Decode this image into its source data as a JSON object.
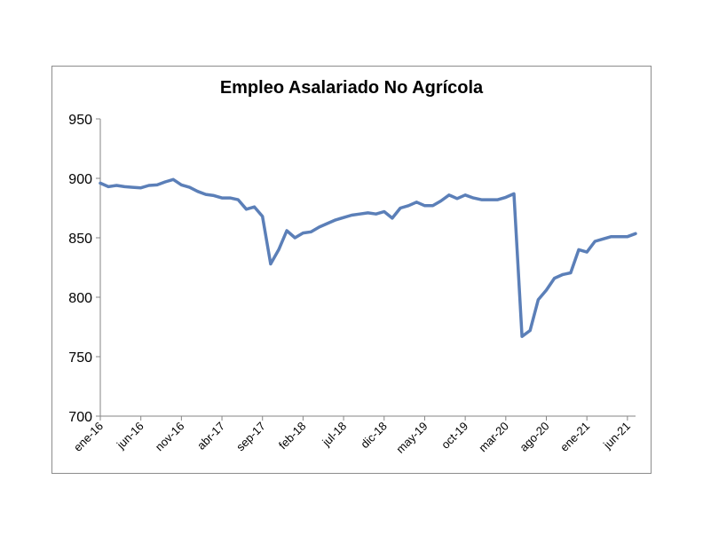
{
  "chart_data": {
    "type": "line",
    "title": "Empleo Asalariado No Agrícola",
    "xlabel": "",
    "ylabel": "",
    "ylim": [
      700,
      950
    ],
    "yticks": [
      700,
      750,
      800,
      850,
      900,
      950
    ],
    "xtick_labels": [
      "ene-16",
      "jun-16",
      "nov-16",
      "abr-17",
      "sep-17",
      "feb-18",
      "jul-18",
      "dic-18",
      "may-19",
      "oct-19",
      "mar-20",
      "ago-20",
      "ene-21",
      "jun-21"
    ],
    "grid": false,
    "legend": "none",
    "colors": {
      "line": "#5b7fb8",
      "axis": "#868686",
      "frame": "#8c8c8c"
    },
    "x": [
      "ene-16",
      "feb-16",
      "mar-16",
      "abr-16",
      "may-16",
      "jun-16",
      "jul-16",
      "ago-16",
      "sep-16",
      "oct-16",
      "nov-16",
      "dic-16",
      "ene-17",
      "feb-17",
      "mar-17",
      "abr-17",
      "may-17",
      "jun-17",
      "jul-17",
      "ago-17",
      "sep-17",
      "oct-17",
      "nov-17",
      "dic-17",
      "ene-18",
      "feb-18",
      "mar-18",
      "abr-18",
      "may-18",
      "jun-18",
      "jul-18",
      "ago-18",
      "sep-18",
      "oct-18",
      "nov-18",
      "dic-18",
      "ene-19",
      "feb-19",
      "mar-19",
      "abr-19",
      "may-19",
      "jun-19",
      "jul-19",
      "ago-19",
      "sep-19",
      "oct-19",
      "nov-19",
      "dic-19",
      "ene-20",
      "feb-20",
      "mar-20",
      "abr-20",
      "may-20",
      "jun-20",
      "jul-20",
      "ago-20",
      "sep-20",
      "oct-20",
      "nov-20",
      "dic-20",
      "ene-21",
      "feb-21",
      "mar-21",
      "abr-21",
      "may-21",
      "jun-21",
      "jul-21"
    ],
    "values": [
      896,
      893,
      894,
      893,
      892.5,
      892,
      894,
      894.5,
      897,
      899,
      894.5,
      892.5,
      889,
      886.5,
      885.5,
      883.5,
      883.5,
      882,
      874,
      876,
      868,
      828,
      840,
      856,
      850,
      854,
      855,
      859,
      862,
      865,
      867,
      869,
      870,
      871,
      870,
      872,
      866.5,
      875,
      877,
      880,
      877,
      877,
      881,
      886,
      883,
      886,
      883.5,
      882,
      882,
      882,
      884,
      887,
      767,
      772,
      798,
      806,
      816,
      819,
      820.5,
      840,
      838,
      847,
      849,
      851,
      851,
      851,
      853.5
    ]
  }
}
